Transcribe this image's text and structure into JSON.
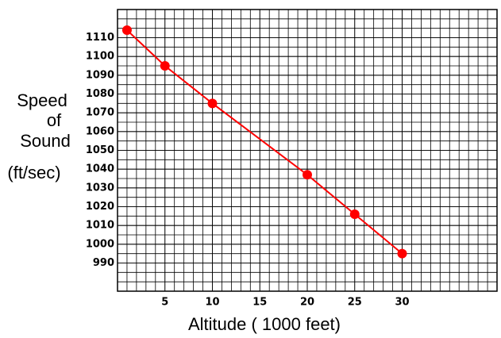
{
  "chart_data": {
    "type": "line",
    "ylabel_lines": [
      "Speed",
      "of",
      "Sound",
      "(ft/sec)"
    ],
    "xlabel": "Altitude ( 1000 feet)",
    "x": [
      1,
      5,
      10,
      20,
      25,
      30
    ],
    "series": [
      {
        "color": "#ff0000",
        "values": [
          1114,
          1095,
          1075,
          1037,
          1016,
          995
        ]
      }
    ],
    "xlim": [
      0,
      40
    ],
    "xticks": [
      5,
      10,
      15,
      20,
      25,
      30
    ],
    "ylim": [
      975,
      1125
    ],
    "yticks": [
      990,
      1000,
      1010,
      1020,
      1030,
      1040,
      1050,
      1060,
      1070,
      1080,
      1090,
      1100,
      1110
    ],
    "grid": true,
    "minor_grid": {
      "x": 1,
      "y": 5
    }
  }
}
